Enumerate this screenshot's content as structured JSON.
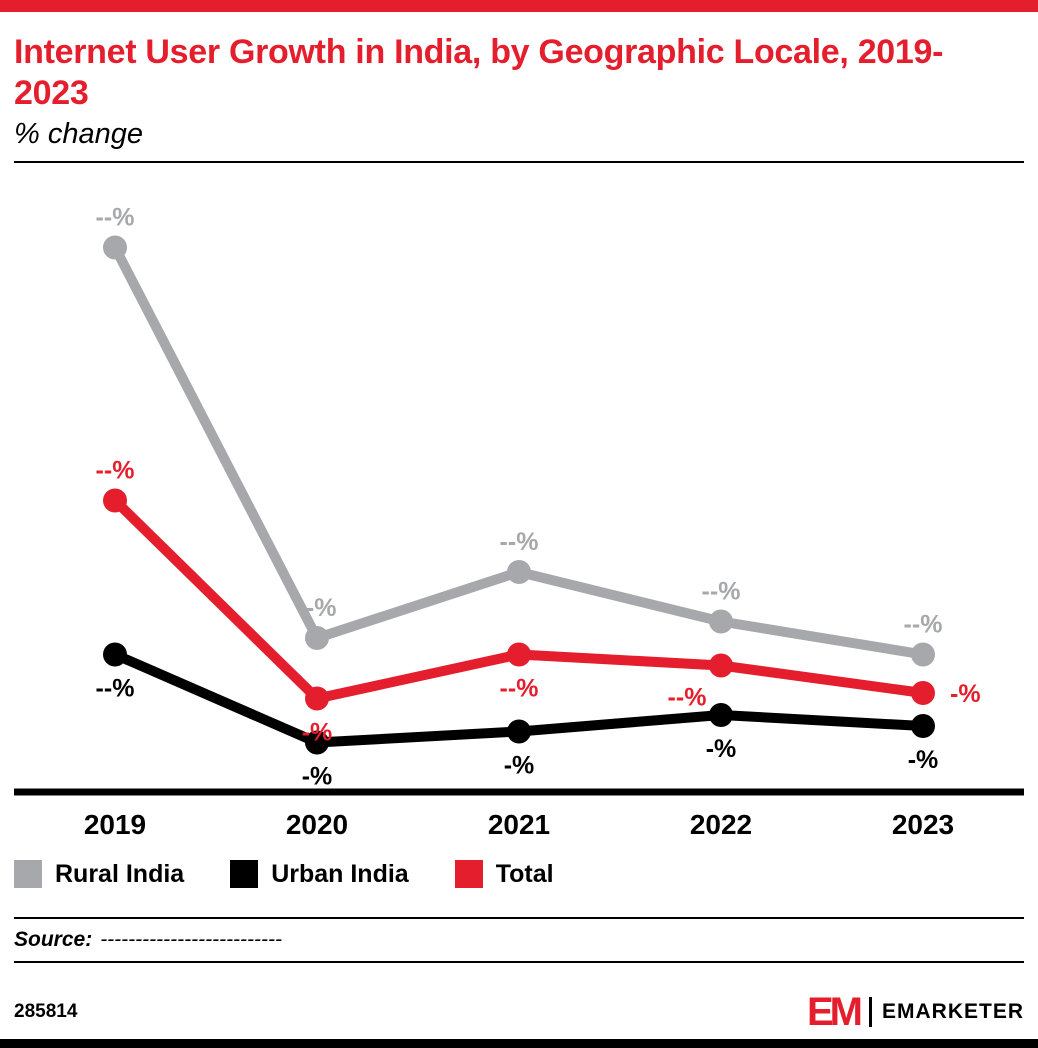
{
  "header": {
    "title": "Internet User Growth in India, by Geographic Locale, 2019-2023",
    "subtitle": "% change"
  },
  "chart_data": {
    "type": "line",
    "title": "Internet User Growth in India, by Geographic Locale, 2019-2023",
    "subtitle": "% change",
    "categories": [
      "2019",
      "2020",
      "2021",
      "2022",
      "2023"
    ],
    "series": [
      {
        "name": "Rural India",
        "color": "#a6a8ab",
        "values": [
          99,
          28,
          40,
          31,
          25
        ],
        "labels": [
          "--%",
          "--%",
          "--%",
          "--%",
          "--%"
        ],
        "label_positions": [
          "above",
          "above",
          "above",
          "above",
          "above"
        ]
      },
      {
        "name": "Urban India",
        "color": "#000000",
        "values": [
          25,
          9,
          11,
          14,
          12
        ],
        "labels": [
          "--%",
          "-%",
          "-%",
          "-%",
          "-%"
        ],
        "label_positions": [
          "below",
          "below",
          "below",
          "below",
          "below"
        ]
      },
      {
        "name": "Total",
        "color": "#e41e2d",
        "values": [
          53,
          17,
          25,
          23,
          18
        ],
        "labels": [
          "--%",
          "-%",
          "--%",
          "--%",
          "-%"
        ],
        "label_positions": [
          "above",
          "below",
          "below",
          "below-left",
          "right"
        ]
      }
    ],
    "ylim": [
      0,
      110
    ],
    "value_scale": "relative estimate (numeric labels redacted as --% in source)",
    "grid": false,
    "legend_position": "bottom"
  },
  "legend": [
    {
      "label": "Rural India",
      "color": "#a6a8ab"
    },
    {
      "label": "Urban India",
      "color": "#000000"
    },
    {
      "label": "Total",
      "color": "#e41e2d"
    }
  ],
  "source": {
    "label": "Source:",
    "text": "--------------------------"
  },
  "footer": {
    "chart_id": "285814",
    "logo_text": "EM",
    "brand": "EMARKETER"
  },
  "colors": {
    "accent_red": "#e41e2d",
    "gray": "#a6a8ab",
    "black": "#000000"
  }
}
